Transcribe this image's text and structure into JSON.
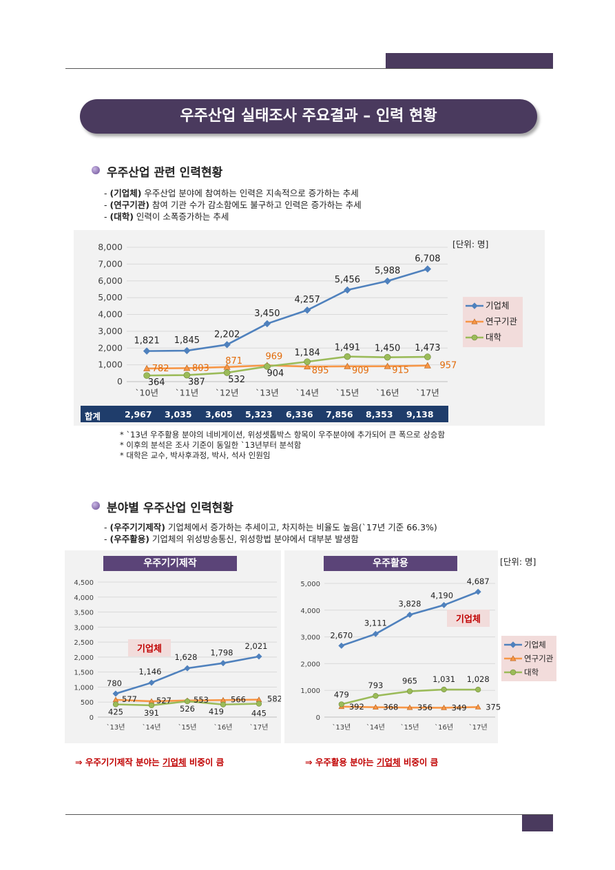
{
  "header": {
    "title": "우주산업 실태조사 주요결과 – 인력 현황"
  },
  "section1": {
    "title": "우주산업 관련 인력현황",
    "lines": [
      {
        "prefix": "- ",
        "bold": "(기업체)",
        "text": " 우주산업 분야에 참여하는 인력은 지속적으로 증가하는 추세"
      },
      {
        "prefix": "- ",
        "bold": "(연구기관)",
        "text": " 참여 기관 수가 감소함에도 불구하고 인력은 증가하는 추세"
      },
      {
        "prefix": "- ",
        "bold": "(대학)",
        "text": " 인력이 소폭증가하는 추세"
      }
    ],
    "unit": "[단위: 명]",
    "totals_label": "합계",
    "totals": [
      "2,967",
      "3,035",
      "3,605",
      "5,323",
      "6,336",
      "7,856",
      "8,353",
      "9,138"
    ],
    "notes": [
      "* `13년 우주활용 분야의 네비게이션, 위성셋톱박스 항목이 우주분야에 추가되어 큰 폭으로 상승함",
      "* 이후의 분석은 조사 기준이 동일한 `13년부터 분석함",
      "* 대학은 교수, 박사후과정, 박사, 석사 인원임"
    ]
  },
  "section2": {
    "title": "분야별 우주산업 인력현황",
    "lines": [
      {
        "prefix": "- ",
        "bold": "(우주기기제작)",
        "text": " 기업체에서 증가하는 추세이고, 차지하는 비율도 높음(`17년 기준 66.3%)"
      },
      {
        "prefix": "- ",
        "bold": "(우주활용)",
        "text": " 기업체의 위성방송통신, 위성항법 분야에서 대부분 발생함"
      }
    ],
    "unit": "[단위: 명]",
    "conclusions": [
      {
        "pre": "⇒ 우주기기제작 분야는 ",
        "u": "기업체",
        "post": " 비중이 큼"
      },
      {
        "pre": "⇒ 우주활용 분야는 ",
        "u": "기업체",
        "post": " 비중이 큼"
      }
    ]
  },
  "chart_data": [
    {
      "type": "line",
      "title": "",
      "categories": [
        "`10년",
        "`11년",
        "`12년",
        "`13년",
        "`14년",
        "`15년",
        "`16년",
        "`17년"
      ],
      "ylim": [
        0,
        8000
      ],
      "yticks": [
        "0",
        "1,000",
        "2,000",
        "3,000",
        "4,000",
        "5,000",
        "6,000",
        "7,000",
        "8,000"
      ],
      "series": [
        {
          "name": "기업체",
          "color": "#4f81bd",
          "marker": "diamond",
          "values": [
            1821,
            1845,
            2202,
            3450,
            4257,
            5456,
            5988,
            6708
          ],
          "labels": [
            "1,821",
            "1,845",
            "2,202",
            "3,450",
            "4,257",
            "5,456",
            "5,988",
            "6,708"
          ]
        },
        {
          "name": "연구기관",
          "color": "#f79646",
          "marker": "triangle",
          "values": [
            782,
            803,
            871,
            969,
            895,
            909,
            915,
            957
          ],
          "labels": [
            "782",
            "803",
            "871",
            "969",
            "895",
            "909",
            "915",
            "957"
          ]
        },
        {
          "name": "대학",
          "color": "#9bbb59",
          "marker": "circle",
          "values": [
            364,
            387,
            532,
            904,
            1184,
            1491,
            1450,
            1473
          ],
          "labels": [
            "364",
            "387",
            "532",
            "904",
            "1,184",
            "1,491",
            "1,450",
            "1,473"
          ]
        }
      ],
      "legend": "right"
    },
    {
      "type": "line",
      "title": "우주기기제작",
      "annotation": "기업체",
      "categories": [
        "`13년",
        "`14년",
        "`15년",
        "`16년",
        "`17년"
      ],
      "ylim": [
        0,
        4500
      ],
      "yticks": [
        "0",
        "500",
        "1,000",
        "1,500",
        "2,000",
        "2,500",
        "3,000",
        "3,500",
        "4,000",
        "4,500"
      ],
      "series": [
        {
          "name": "기업체",
          "color": "#4f81bd",
          "marker": "diamond",
          "values": [
            780,
            1146,
            1628,
            1798,
            2021
          ],
          "labels": [
            "780",
            "1,146",
            "1,628",
            "1,798",
            "2,021"
          ]
        },
        {
          "name": "연구기관",
          "color": "#f79646",
          "marker": "triangle",
          "values": [
            577,
            527,
            553,
            566,
            582
          ],
          "labels": [
            "577",
            "527",
            "553",
            "566",
            "582"
          ]
        },
        {
          "name": "대학",
          "color": "#9bbb59",
          "marker": "circle",
          "values": [
            425,
            391,
            526,
            419,
            445
          ],
          "labels": [
            "425",
            "391",
            "526",
            "419",
            "445"
          ]
        }
      ]
    },
    {
      "type": "line",
      "title": "우주활용",
      "annotation": "기업체",
      "categories": [
        "`13년",
        "`14년",
        "`15년",
        "`16년",
        "`17년"
      ],
      "ylim": [
        0,
        5000
      ],
      "yticks": [
        "0",
        "1,000",
        "2,000",
        "3,000",
        "4,000",
        "5,000"
      ],
      "series": [
        {
          "name": "기업체",
          "color": "#4f81bd",
          "marker": "diamond",
          "values": [
            2670,
            3111,
            3828,
            4190,
            4687
          ],
          "labels": [
            "2,670",
            "3,111",
            "3,828",
            "4,190",
            "4,687"
          ]
        },
        {
          "name": "연구기관",
          "color": "#f79646",
          "marker": "triangle",
          "values": [
            392,
            368,
            356,
            349,
            375
          ],
          "labels": [
            "392",
            "368",
            "356",
            "349",
            "375"
          ]
        },
        {
          "name": "대학",
          "color": "#9bbb59",
          "marker": "circle",
          "values": [
            479,
            793,
            965,
            1031,
            1028
          ],
          "labels": [
            "479",
            "793",
            "965",
            "1,031",
            "1,028"
          ]
        }
      ],
      "legend": "right"
    }
  ]
}
